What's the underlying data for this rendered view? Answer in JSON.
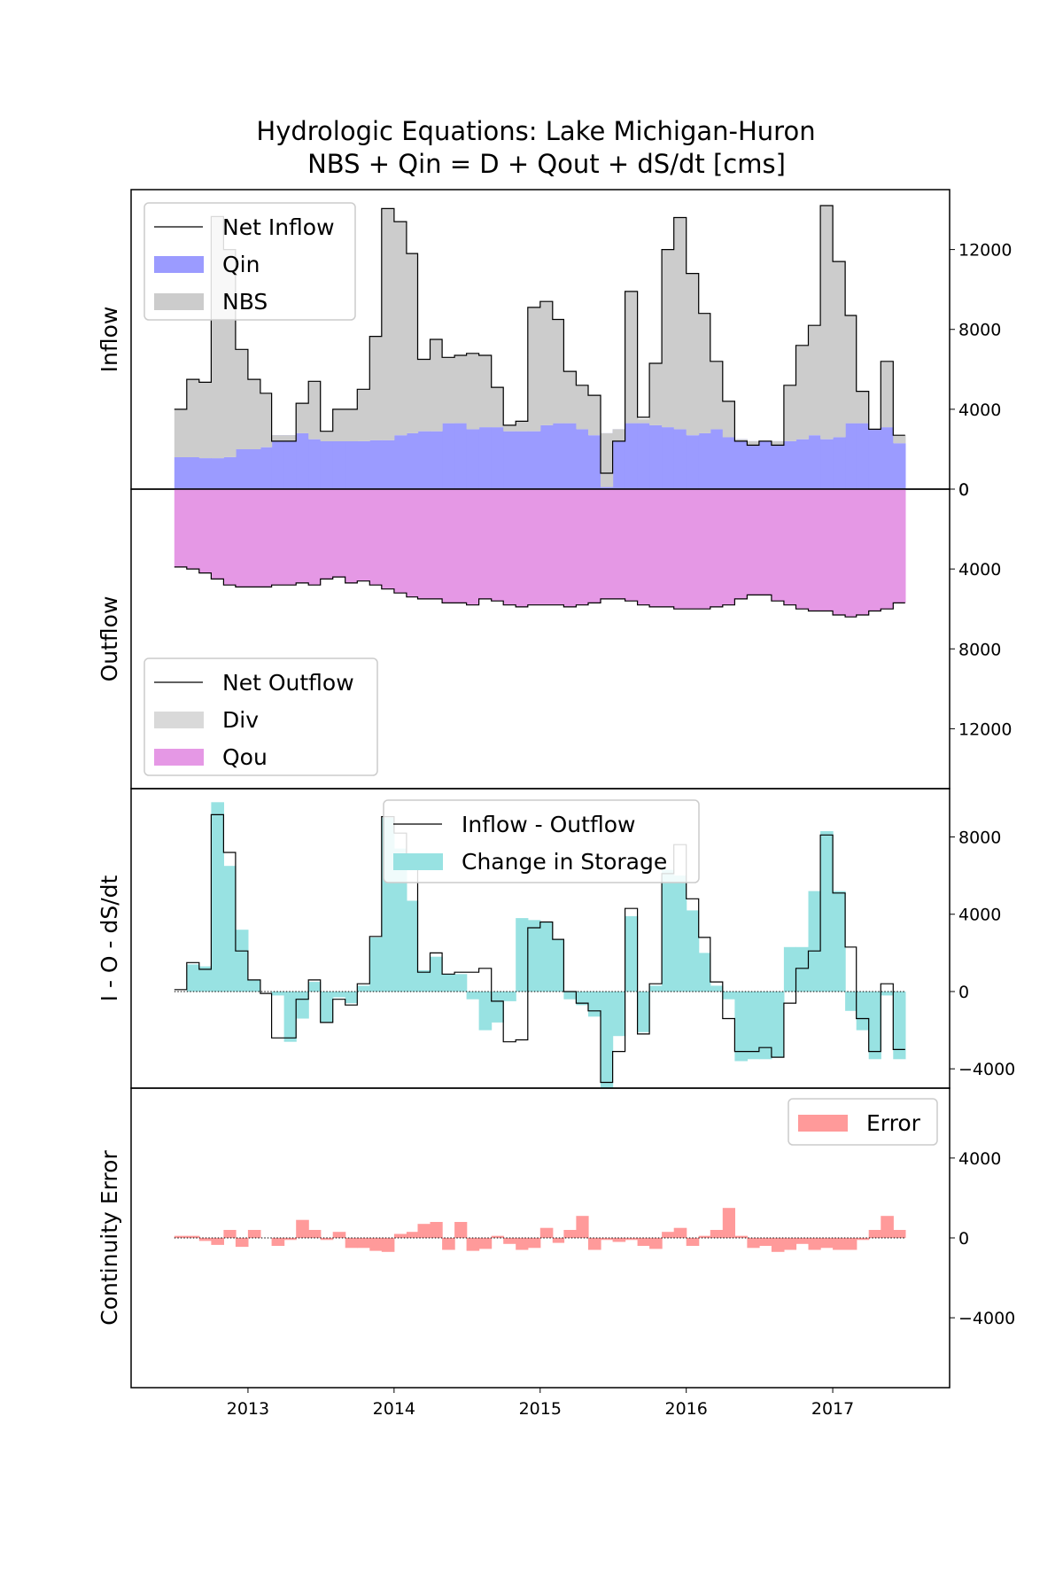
{
  "title": {
    "line1": "Hydrologic Equations: Lake Michigan-Huron",
    "line2": "NBS + Qin = D + Qout + dS/dt [cms]"
  },
  "colors": {
    "nbs": "#cccccc",
    "qin": "#9b9bff",
    "div": "#d9d9d9",
    "qou": "#e598e5",
    "storage": "#98e2e2",
    "error": "#ff9a9a",
    "line": "#000000"
  },
  "chart_data": {
    "type": "area",
    "x_axis": {
      "type": "time",
      "range": [
        "2012-07-01",
        "2017-07-01"
      ],
      "tick_labels": [
        "2013",
        "2014",
        "2015",
        "2016",
        "2017"
      ],
      "tick_values": [
        "2013-01-01",
        "2014-01-01",
        "2015-01-01",
        "2016-01-01",
        "2017-01-01"
      ]
    },
    "months": [
      "2012-07",
      "2012-08",
      "2012-09",
      "2012-10",
      "2012-11",
      "2012-12",
      "2013-01",
      "2013-02",
      "2013-03",
      "2013-04",
      "2013-05",
      "2013-06",
      "2013-07",
      "2013-08",
      "2013-09",
      "2013-10",
      "2013-11",
      "2013-12",
      "2014-01",
      "2014-02",
      "2014-03",
      "2014-04",
      "2014-05",
      "2014-06",
      "2014-07",
      "2014-08",
      "2014-09",
      "2014-10",
      "2014-11",
      "2014-12",
      "2015-01",
      "2015-02",
      "2015-03",
      "2015-04",
      "2015-05",
      "2015-06",
      "2015-07",
      "2015-08",
      "2015-09",
      "2015-10",
      "2015-11",
      "2015-12",
      "2016-01",
      "2016-02",
      "2016-03",
      "2016-04",
      "2016-05",
      "2016-06",
      "2016-07",
      "2016-08",
      "2016-09",
      "2016-10",
      "2016-11",
      "2016-12",
      "2017-01",
      "2017-02",
      "2017-03",
      "2017-04",
      "2017-05",
      "2017-06"
    ],
    "panels": [
      {
        "ylabel": "Inflow",
        "ylim": [
          0,
          15000
        ],
        "ticks": [
          0,
          4000,
          8000,
          12000
        ],
        "tick_labels": [
          "0",
          "4000",
          "8000",
          "12000"
        ],
        "legend": {
          "position": "upper left",
          "entries": [
            "Net Inflow",
            "Qin",
            "NBS"
          ]
        },
        "series": [
          {
            "name": "Qin",
            "kind": "stacked-area",
            "values": [
              1600,
              1600,
              1550,
              1550,
              1600,
              2000,
              2000,
              2100,
              2700,
              2700,
              2800,
              2500,
              2400,
              2400,
              2400,
              2400,
              2450,
              2450,
              2700,
              2800,
              2900,
              2900,
              3300,
              3300,
              3000,
              3100,
              3100,
              2900,
              2900,
              2900,
              3200,
              3300,
              3300,
              3000,
              2700,
              2800,
              3000,
              3300,
              3300,
              3200,
              3100,
              3000,
              2700,
              2800,
              3000,
              2600,
              2500,
              2400,
              2400,
              2400,
              2400,
              2500,
              2700,
              2500,
              2600,
              3300,
              3300,
              3000,
              3100,
              2300
            ]
          },
          {
            "name": "NBS",
            "kind": "stacked-area",
            "values": [
              2400,
              3900,
              3800,
              12100,
              10400,
              5000,
              3500,
              2700,
              -300,
              -300,
              1500,
              2900,
              500,
              1600,
              1600,
              2600,
              5200,
              11600,
              10700,
              9000,
              3600,
              4600,
              3300,
              3400,
              3800,
              3600,
              2000,
              300,
              500,
              6200,
              6200,
              5200,
              2600,
              2200,
              2000,
              -2700,
              -600,
              6600,
              200,
              3100,
              8900,
              10600,
              8100,
              6000,
              3400,
              1800,
              -100,
              -200,
              0,
              -200,
              2800,
              4700,
              5500,
              11700,
              8800,
              5400,
              1600,
              0,
              3300,
              400
            ]
          },
          {
            "name": "Net Inflow",
            "kind": "step-line",
            "values": [
              4000,
              5500,
              5350,
              13650,
              12000,
              7000,
              5500,
              4800,
              2400,
              2400,
              4300,
              5400,
              2900,
              4000,
              4000,
              5000,
              7650,
              14050,
              13400,
              11800,
              6500,
              7500,
              6600,
              6700,
              6800,
              6700,
              5100,
              3200,
              3400,
              9100,
              9400,
              8500,
              5900,
              5200,
              4700,
              800,
              2400,
              9900,
              3600,
              6300,
              12000,
              13600,
              10800,
              8800,
              6400,
              4400,
              2400,
              2200,
              2400,
              2200,
              5200,
              7200,
              8200,
              14200,
              11400,
              8700,
              4900,
              3000,
              6400,
              2700
            ]
          }
        ]
      },
      {
        "ylabel": "Outflow",
        "ylim": [
          0,
          15000
        ],
        "inverted": true,
        "ticks": [
          0,
          4000,
          8000,
          12000
        ],
        "tick_labels": [
          "0",
          "4000",
          "8000",
          "12000"
        ],
        "legend": {
          "position": "lower left",
          "entries": [
            "Net Outflow",
            "Div",
            "Qou"
          ]
        },
        "series": [
          {
            "name": "Div",
            "kind": "stacked-area",
            "values": [
              0,
              0,
              0,
              0,
              0,
              0,
              0,
              0,
              0,
              0,
              0,
              0,
              0,
              0,
              0,
              0,
              0,
              0,
              0,
              0,
              0,
              0,
              0,
              0,
              0,
              0,
              0,
              0,
              0,
              0,
              0,
              0,
              0,
              0,
              0,
              0,
              0,
              0,
              0,
              0,
              0,
              0,
              0,
              0,
              0,
              0,
              0,
              0,
              0,
              0,
              0,
              0,
              0,
              0,
              0,
              0,
              0,
              0,
              0,
              0
            ]
          },
          {
            "name": "Qou",
            "kind": "stacked-area",
            "values": [
              3900,
              4000,
              4200,
              4500,
              4800,
              4900,
              4900,
              4900,
              4800,
              4800,
              4700,
              4800,
              4500,
              4400,
              4700,
              4600,
              4800,
              5000,
              5200,
              5400,
              5500,
              5500,
              5700,
              5700,
              5800,
              5500,
              5600,
              5800,
              5900,
              5800,
              5800,
              5800,
              5900,
              5800,
              5700,
              5500,
              5500,
              5600,
              5800,
              5900,
              5900,
              6000,
              6000,
              6000,
              5900,
              5800,
              5500,
              5300,
              5300,
              5600,
              5800,
              6000,
              6100,
              6100,
              6300,
              6400,
              6300,
              6100,
              6000,
              5700
            ]
          },
          {
            "name": "Net Outflow",
            "kind": "step-line",
            "values": [
              3900,
              4000,
              4200,
              4500,
              4800,
              4900,
              4900,
              4900,
              4800,
              4800,
              4700,
              4800,
              4500,
              4400,
              4700,
              4600,
              4800,
              5000,
              5200,
              5400,
              5500,
              5500,
              5700,
              5700,
              5800,
              5500,
              5600,
              5800,
              5900,
              5800,
              5800,
              5800,
              5900,
              5800,
              5700,
              5500,
              5500,
              5600,
              5800,
              5900,
              5900,
              6000,
              6000,
              6000,
              5900,
              5800,
              5500,
              5300,
              5300,
              5600,
              5800,
              6000,
              6100,
              6100,
              6300,
              6400,
              6300,
              6100,
              6000,
              5700
            ]
          }
        ]
      },
      {
        "ylabel": "I - O - dS/dt",
        "ylim": [
          -5000,
          10500
        ],
        "ticks": [
          -4000,
          0,
          4000,
          8000
        ],
        "tick_labels": [
          "−4000",
          "0",
          "4000",
          "8000"
        ],
        "zero_line": "dotted",
        "legend": {
          "position": "upper center",
          "entries": [
            "Inflow - Outflow",
            "Change in Storage"
          ]
        },
        "series": [
          {
            "name": "Change in Storage",
            "kind": "step-area",
            "values": [
              0,
              1400,
              1300,
              9800,
              6500,
              3200,
              600,
              0,
              -200,
              -2600,
              -1400,
              500,
              -1600,
              -300,
              -600,
              300,
              2800,
              9000,
              7400,
              4700,
              1100,
              1800,
              900,
              900,
              -400,
              -2000,
              -1600,
              -500,
              3800,
              3700,
              3600,
              2700,
              -400,
              -700,
              -1300,
              -5000,
              -2300,
              3900,
              -2100,
              300,
              6300,
              6000,
              4200,
              2000,
              300,
              -400,
              -3600,
              -3500,
              -3500,
              -3400,
              2300,
              2300,
              5200,
              8300,
              5200,
              -1000,
              -2000,
              -3500,
              -200,
              -3500
            ]
          },
          {
            "name": "Inflow - Outflow",
            "kind": "step-line",
            "values": [
              100,
              1500,
              1150,
              9150,
              7200,
              2100,
              600,
              -100,
              -2400,
              -2400,
              -400,
              600,
              -1600,
              -400,
              -700,
              400,
              2850,
              9050,
              8200,
              6400,
              1000,
              2000,
              900,
              1000,
              1000,
              1200,
              -500,
              -2600,
              -2500,
              3300,
              3600,
              2700,
              0,
              -600,
              -1000,
              -4700,
              -3100,
              4300,
              -2200,
              400,
              6100,
              7600,
              4800,
              2800,
              500,
              -1400,
              -3100,
              -3100,
              -2900,
              -3400,
              -600,
              1200,
              2100,
              8100,
              5100,
              2300,
              -1400,
              -3100,
              400,
              -3000
            ]
          }
        ]
      },
      {
        "ylabel": "Continuity Error",
        "ylim": [
          -7500,
          7500
        ],
        "ticks": [
          -4000,
          0,
          4000
        ],
        "tick_labels": [
          "−4000",
          "0",
          "4000"
        ],
        "zero_line": "dotted",
        "legend": {
          "position": "upper right",
          "entries": [
            "Error"
          ]
        },
        "series": [
          {
            "name": "Error",
            "kind": "step-area",
            "values": [
              100,
              100,
              -150,
              -350,
              400,
              -450,
              400,
              0,
              -400,
              -100,
              900,
              400,
              -100,
              300,
              -500,
              -500,
              -650,
              -700,
              200,
              300,
              700,
              800,
              -600,
              800,
              -650,
              -550,
              100,
              -300,
              -600,
              -500,
              500,
              -250,
              400,
              1100,
              -600,
              -100,
              -200,
              -100,
              -400,
              -550,
              300,
              500,
              -400,
              100,
              400,
              1500,
              100,
              -500,
              -400,
              -700,
              -600,
              -300,
              -600,
              -500,
              -600,
              -600,
              -100,
              400,
              1100,
              400
            ]
          }
        ]
      }
    ]
  }
}
